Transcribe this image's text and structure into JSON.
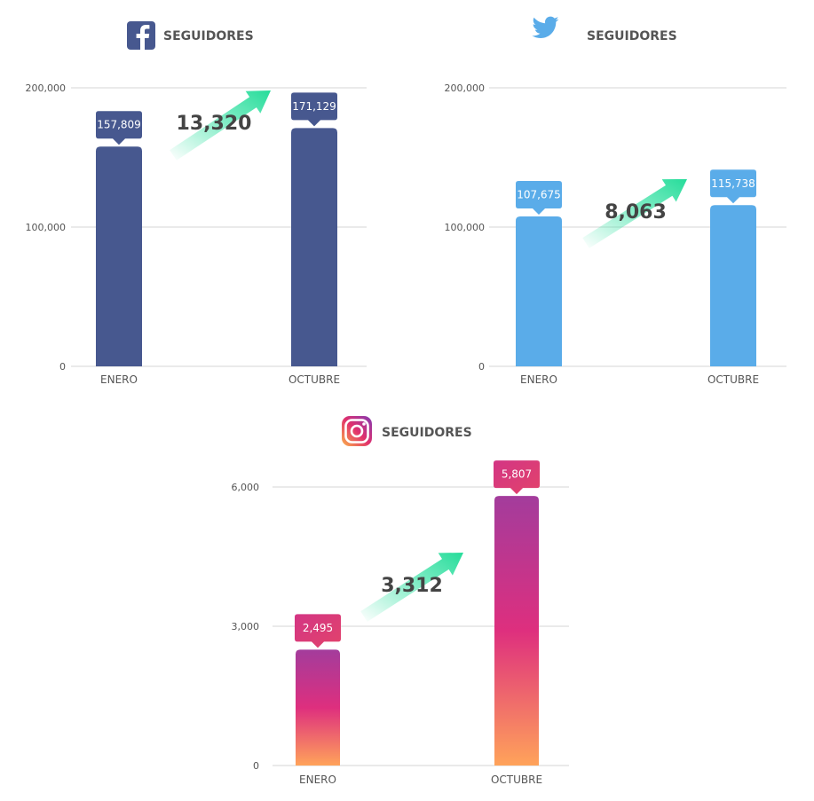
{
  "colors": {
    "facebook": "#47588f",
    "twitter": "#5aace9",
    "arrow": "#2ee0a0",
    "grid": "#d6d6d6",
    "text": "#555555",
    "instagram_top": "#a33c9c",
    "instagram_mid": "#de2f7e",
    "instagram_bottom": "#ffa35a"
  },
  "chart_data": [
    {
      "type": "bar",
      "platform": "facebook",
      "icon": "facebook-icon",
      "title": "SEGUIDORES",
      "categories": [
        "ENERO",
        "OCTUBRE"
      ],
      "values": [
        157809,
        171129
      ],
      "value_labels": [
        "157,809",
        "171,129"
      ],
      "increase_label": "13,320",
      "ylim": [
        0,
        200000
      ],
      "yticks": [
        0,
        100000,
        200000
      ],
      "ytick_labels": [
        "0",
        "100,000",
        "200,000"
      ],
      "grid": true
    },
    {
      "type": "bar",
      "platform": "twitter",
      "icon": "twitter-bird-icon",
      "title": "SEGUIDORES",
      "categories": [
        "ENERO",
        "OCTUBRE"
      ],
      "values": [
        107675,
        115738
      ],
      "value_labels": [
        "107,675",
        "115,738"
      ],
      "increase_label": "8,063",
      "ylim": [
        0,
        200000
      ],
      "yticks": [
        0,
        100000,
        200000
      ],
      "ytick_labels": [
        "0",
        "100,000",
        "200,000"
      ],
      "grid": true
    },
    {
      "type": "bar",
      "platform": "instagram",
      "icon": "instagram-icon",
      "title": "SEGUIDORES",
      "categories": [
        "ENERO",
        "OCTUBRE"
      ],
      "values": [
        2495,
        5807
      ],
      "value_labels": [
        "2,495",
        "5,807"
      ],
      "increase_label": "3,312",
      "ylim": [
        0,
        6000
      ],
      "yticks": [
        0,
        3000,
        6000
      ],
      "ytick_labels": [
        "0",
        "3,000",
        "6,000"
      ],
      "grid": true
    }
  ]
}
